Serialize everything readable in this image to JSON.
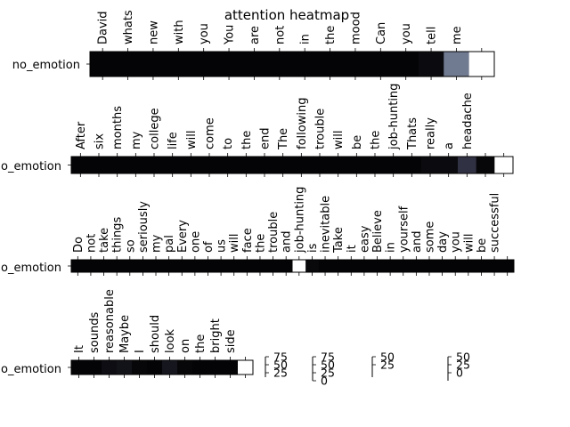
{
  "chart_data": {
    "type": "heatmap",
    "title": "attention heatmap",
    "colormap": "bone",
    "panels": [
      {
        "row_label": "no_emotion",
        "tokens": [
          "David",
          "whats",
          "new",
          "with",
          "you",
          "You",
          "are",
          "not",
          "in",
          "the",
          "mood",
          "Can",
          "you",
          "tell",
          "me",
          ""
        ],
        "values": [
          0.02,
          0.02,
          0.02,
          0.02,
          0.02,
          0.02,
          0.02,
          0.02,
          0.02,
          0.02,
          0.02,
          0.02,
          0.02,
          0.05,
          0.5,
          1.0
        ]
      },
      {
        "row_label": "no_emotion",
        "tokens": [
          "After",
          "six",
          "months",
          "my",
          "college",
          "life",
          "will",
          "come",
          "to",
          "the",
          "end",
          "The",
          "following",
          "trouble",
          "will",
          "be",
          "the",
          "job-hunting",
          "Thats",
          "really",
          "a",
          "headache",
          "",
          ""
        ],
        "values": [
          0.02,
          0.02,
          0.02,
          0.02,
          0.02,
          0.02,
          0.02,
          0.02,
          0.02,
          0.02,
          0.02,
          0.02,
          0.02,
          0.02,
          0.02,
          0.02,
          0.02,
          0.02,
          0.02,
          0.05,
          0.05,
          0.22,
          0.03,
          1.0
        ]
      },
      {
        "row_label": "no_emotion",
        "tokens": [
          "Do",
          "not",
          "take",
          "things",
          "so",
          "seriously",
          "my",
          "pal",
          "Every",
          "one",
          "of",
          "us",
          "will",
          "face",
          "the",
          "trouble",
          "and",
          "job-hunting",
          "is",
          "inevitable",
          "Take",
          "it",
          "easy",
          "Believe",
          "in",
          "yourself",
          "and",
          "some",
          "day",
          "you",
          "will",
          "be",
          "successful",
          ""
        ],
        "values": [
          0.02,
          0.02,
          0.02,
          0.02,
          0.02,
          0.02,
          0.02,
          0.02,
          0.02,
          0.02,
          0.02,
          0.02,
          0.02,
          0.02,
          0.02,
          0.02,
          0.02,
          1.0,
          0.04,
          0.02,
          0.02,
          0.02,
          0.02,
          0.02,
          0.02,
          0.02,
          0.02,
          0.02,
          0.02,
          0.02,
          0.02,
          0.02,
          0.02,
          0.02
        ]
      },
      {
        "row_label": "no_emotion",
        "tokens": [
          "It",
          "sounds",
          "reasonable",
          "Maybe",
          "I",
          "should",
          "look",
          "on",
          "the",
          "bright",
          "side",
          ""
        ],
        "values": [
          0.02,
          0.02,
          0.06,
          0.08,
          0.03,
          0.02,
          0.1,
          0.03,
          0.02,
          0.02,
          0.02,
          1.0
        ]
      }
    ],
    "colorbars": [
      {
        "ticks": [
          "75",
          "50",
          "25"
        ]
      },
      {
        "ticks": [
          "75",
          "50",
          "25",
          "0"
        ]
      },
      {
        "ticks": [
          "50",
          "25"
        ]
      },
      {
        "ticks": [
          "50",
          "25",
          "0"
        ]
      }
    ]
  }
}
